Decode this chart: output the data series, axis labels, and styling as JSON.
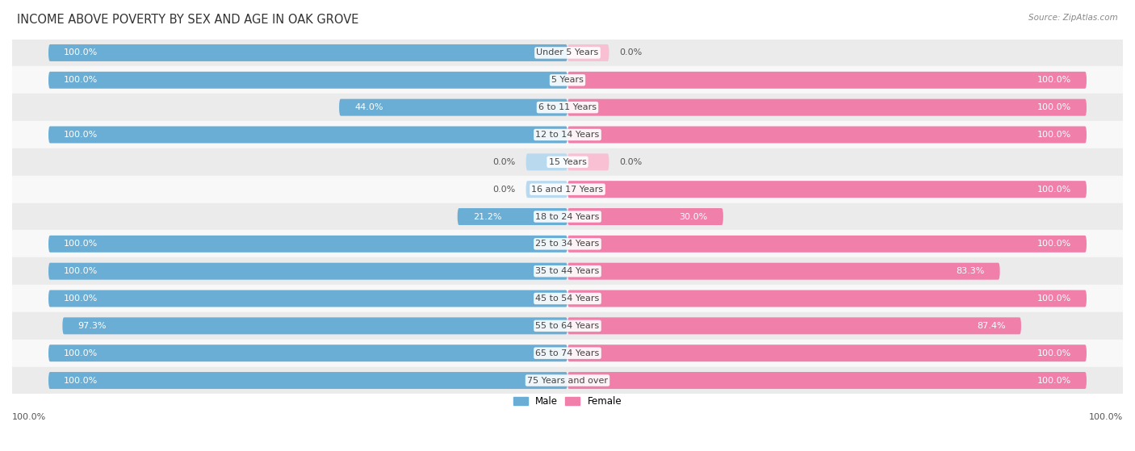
{
  "title": "INCOME ABOVE POVERTY BY SEX AND AGE IN OAK GROVE",
  "source": "Source: ZipAtlas.com",
  "categories": [
    "Under 5 Years",
    "5 Years",
    "6 to 11 Years",
    "12 to 14 Years",
    "15 Years",
    "16 and 17 Years",
    "18 to 24 Years",
    "25 to 34 Years",
    "35 to 44 Years",
    "45 to 54 Years",
    "55 to 64 Years",
    "65 to 74 Years",
    "75 Years and over"
  ],
  "male_values": [
    100.0,
    100.0,
    44.0,
    100.0,
    0.0,
    0.0,
    21.2,
    100.0,
    100.0,
    100.0,
    97.3,
    100.0,
    100.0
  ],
  "female_values": [
    0.0,
    100.0,
    100.0,
    100.0,
    0.0,
    100.0,
    30.0,
    100.0,
    83.3,
    100.0,
    87.4,
    100.0,
    100.0
  ],
  "male_color": "#6aaed6",
  "female_color": "#f07faa",
  "male_color_light": "#b8d9ee",
  "female_color_light": "#f9c0d3",
  "male_label": "Male",
  "female_label": "Female",
  "bg_color_odd": "#ebebeb",
  "bg_color_even": "#f8f8f8",
  "bar_height": 0.62,
  "max_val": 100.0,
  "label_fontsize": 8.0,
  "cat_fontsize": 8.0,
  "title_fontsize": 10.5,
  "source_fontsize": 7.5,
  "label_color_on_bar": "#ffffff",
  "label_color_off_bar": "#555555",
  "axis_label_bottom": "100.0%",
  "axis_label_bottom_right": "100.0%"
}
